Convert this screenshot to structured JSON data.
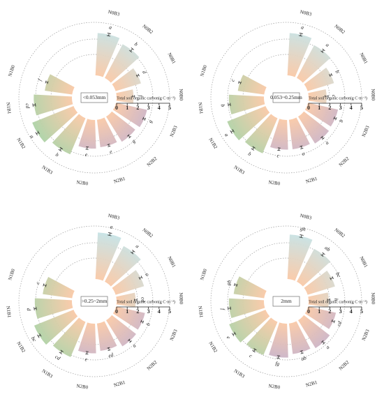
{
  "chart_data": [
    {
      "type": "bar",
      "polar": true,
      "size_class": "<0.053mm",
      "axis_label": "Total soil organic carbon(g C·m⁻²)",
      "axis_ticks": [
        "0",
        "1",
        "2",
        "3",
        "4",
        "5"
      ],
      "ylim": [
        0,
        5
      ],
      "categories": [
        "N0B3",
        "N0B2",
        "N0B1",
        "N0B0",
        "N2B3",
        "N2B2",
        "N2B1",
        "N2B0",
        "N1B3",
        "N1B2",
        "N1B1",
        "N1B0"
      ],
      "values": [
        4.0,
        3.6,
        2.5,
        1.6,
        3.0,
        2.8,
        2.6,
        2.7,
        3.7,
        4.2,
        3.6,
        2.6
      ],
      "errors": [
        0.12,
        0.15,
        0.1,
        0.1,
        0.1,
        0.12,
        0.1,
        0.12,
        0.12,
        0.12,
        0.12,
        0.1
      ],
      "letters": [
        "a",
        "b",
        "d",
        "f",
        "g",
        "g",
        "e",
        "e",
        "b",
        "a",
        "cd",
        "f"
      ]
    },
    {
      "type": "bar",
      "polar": true,
      "size_class": "0.053~0.25mm",
      "axis_label": "Total soil organic carbon(g C·m⁻²)",
      "axis_ticks": [
        "0",
        "1",
        "2",
        "3",
        "4",
        "5"
      ],
      "ylim": [
        0,
        5
      ],
      "categories": [
        "N0B3",
        "N0B2",
        "N0B1",
        "N0B0",
        "N2B3",
        "N2B2",
        "N2B1",
        "N2B0",
        "N1B3",
        "N1B2",
        "N1B1",
        "N1B0"
      ],
      "values": [
        4.0,
        3.5,
        2.6,
        1.7,
        2.9,
        3.0,
        2.8,
        2.8,
        3.6,
        3.9,
        3.3,
        2.5
      ],
      "errors": [
        0.12,
        0.12,
        0.1,
        0.15,
        0.1,
        0.1,
        0.12,
        0.12,
        0.12,
        0.12,
        0.1,
        0.1
      ],
      "letters": [
        "a",
        "a",
        "b",
        "c",
        "b",
        "a",
        "a",
        "c",
        "b",
        "a",
        "b",
        "c"
      ]
    },
    {
      "type": "bar",
      "polar": true,
      "size_class": ">0.25~2mm",
      "axis_label": "Total soil organic carbon(g C·m⁻²)",
      "axis_ticks": [
        "0",
        "1",
        "2",
        "3",
        "4",
        "5"
      ],
      "ylim": [
        0,
        5
      ],
      "categories": [
        "N0B3",
        "N0B2",
        "N0B1",
        "N0B0",
        "N2B3",
        "N2B2",
        "N2B1",
        "N2B0",
        "N1B3",
        "N1B2",
        "N1B1",
        "N1B0"
      ],
      "values": [
        4.4,
        3.8,
        2.8,
        1.8,
        2.8,
        2.9,
        2.6,
        2.8,
        3.6,
        4.0,
        3.5,
        2.8
      ],
      "errors": [
        0.12,
        0.12,
        0.12,
        0.12,
        0.1,
        0.12,
        0.12,
        0.12,
        0.12,
        0.12,
        0.1,
        0.12
      ],
      "letters": [
        "a",
        "a",
        "a",
        "cd",
        "b",
        "a",
        "ed",
        "e",
        "cd",
        "bc",
        "d",
        "c"
      ]
    },
    {
      "type": "bar",
      "polar": true,
      "size_class": "2mm",
      "axis_label": "Total soil organic carbon(g C·m⁻²)",
      "axis_ticks": [
        "0",
        "1",
        "2",
        "3",
        "4",
        "5"
      ],
      "ylim": [
        0,
        5
      ],
      "categories": [
        "N0B3",
        "N0B2",
        "N0B1",
        "N0B0",
        "N2B3",
        "N2B2",
        "N2B1",
        "N2B0",
        "N1B3",
        "N1B2",
        "N1B1",
        "N1B0"
      ],
      "values": [
        4.2,
        3.5,
        2.7,
        1.9,
        2.7,
        3.1,
        2.9,
        3.2,
        3.4,
        3.7,
        3.3,
        2.9
      ],
      "errors": [
        0.12,
        0.12,
        0.12,
        0.12,
        0.12,
        0.12,
        0.12,
        0.12,
        0.12,
        0.12,
        0.12,
        0.12
      ],
      "letters": [
        "gh",
        "ab",
        "bc",
        "h",
        "cd",
        "a",
        "ab",
        "fg",
        "c",
        "e",
        "f",
        "gh"
      ]
    }
  ],
  "colors": {
    "n0_fill_top": "#bfe6ee",
    "n2_fill": "#b3a9d8",
    "n1_fill": "#9fd4a6",
    "inner_fill": "#f9c9a7",
    "grid_line": "#9a9a9a",
    "error_bar": "#333333"
  }
}
